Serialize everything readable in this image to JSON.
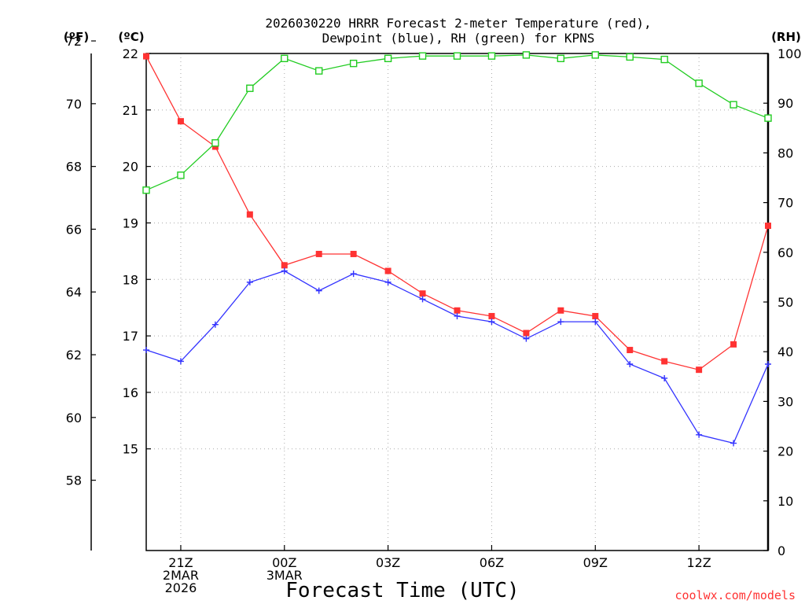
{
  "chart_data": {
    "type": "line",
    "title_line1": "2026030220 HRRR Forecast 2-meter Temperature (red),",
    "title_line2": "Dewpoint (blue), RH (green) for KPNS",
    "xlabel": "Forecast Time (UTC)",
    "credit": "coolwx.com/models",
    "colors": {
      "temp": "#ff3333",
      "dewpoint": "#3333ff",
      "rh": "#22cc22"
    },
    "axes": {
      "fahrenheit": {
        "label": "(ºF)",
        "ticks": [
          58,
          60,
          62,
          64,
          66,
          68,
          70,
          72
        ]
      },
      "celsius": {
        "label": "(ºC)",
        "ylim": [
          13.2,
          22.0
        ],
        "ticks": [
          15,
          16,
          17,
          18,
          19,
          20,
          21,
          22
        ]
      },
      "rh": {
        "label": "(RH)",
        "ylim": [
          0,
          100
        ],
        "ticks": [
          0,
          10,
          20,
          30,
          40,
          50,
          60,
          70,
          80,
          90,
          100
        ]
      }
    },
    "x": [
      20,
      21,
      22,
      23,
      24,
      25,
      26,
      27,
      28,
      29,
      30,
      31,
      32,
      33,
      34,
      35,
      36,
      37,
      38
    ],
    "xlim": [
      20,
      38
    ],
    "x_ticks": [
      {
        "x": 21,
        "lines": [
          "21Z",
          "2MAR",
          "2026"
        ]
      },
      {
        "x": 24,
        "lines": [
          "00Z",
          "3MAR"
        ]
      },
      {
        "x": 27,
        "lines": [
          "03Z"
        ]
      },
      {
        "x": 30,
        "lines": [
          "06Z"
        ]
      },
      {
        "x": 33,
        "lines": [
          "09Z"
        ]
      },
      {
        "x": 36,
        "lines": [
          "12Z"
        ]
      }
    ],
    "series": [
      {
        "name": "Temperature",
        "axis": "celsius",
        "marker": "filled-square",
        "values": [
          21.95,
          20.8,
          20.35,
          19.15,
          18.25,
          18.45,
          18.45,
          18.15,
          17.75,
          17.45,
          17.35,
          17.05,
          17.45,
          17.35,
          16.75,
          16.55,
          16.4,
          16.85,
          18.95
        ]
      },
      {
        "name": "Dewpoint",
        "axis": "celsius",
        "marker": "plus",
        "values": [
          16.75,
          16.55,
          17.2,
          17.95,
          18.15,
          17.8,
          18.1,
          17.95,
          17.65,
          17.35,
          17.25,
          16.95,
          17.25,
          17.25,
          16.5,
          16.25,
          15.25,
          15.1,
          16.5
        ]
      },
      {
        "name": "RH",
        "axis": "rh",
        "marker": "open-square",
        "values": [
          72.5,
          75.5,
          82,
          93,
          99,
          96.5,
          98,
          99,
          99.5,
          99.5,
          99.5,
          99.7,
          99,
          99.7,
          99.3,
          98.8,
          94,
          89.7,
          87
        ]
      }
    ]
  }
}
